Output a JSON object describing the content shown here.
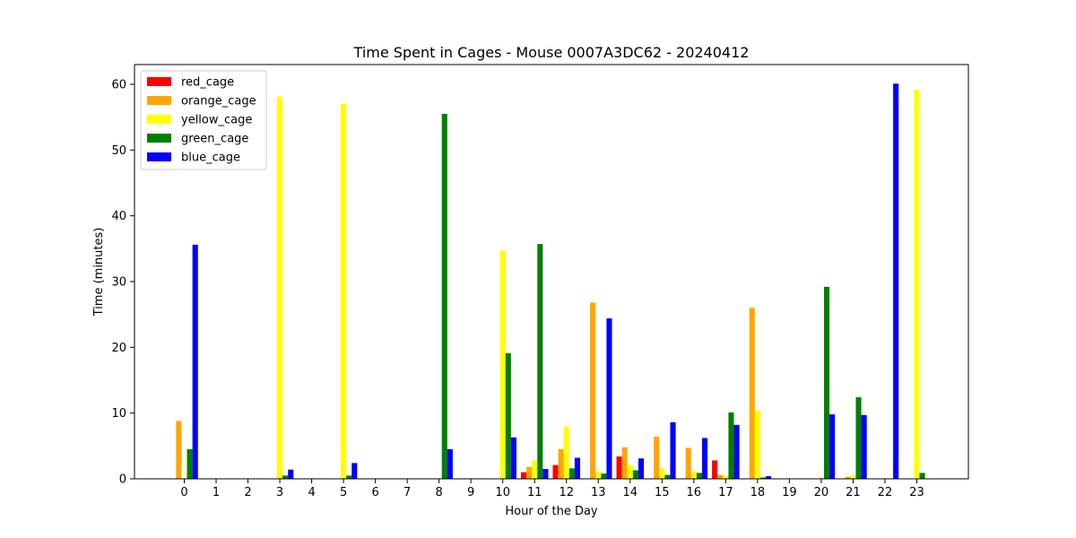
{
  "chart_data": {
    "type": "bar",
    "title": "Time Spent in Cages - Mouse 0007A3DC62 - 20240412",
    "xlabel": "Hour of the Day",
    "ylabel": "Time (minutes)",
    "categories": [
      "0",
      "1",
      "2",
      "3",
      "4",
      "5",
      "6",
      "7",
      "8",
      "9",
      "10",
      "11",
      "12",
      "13",
      "14",
      "15",
      "16",
      "17",
      "18",
      "19",
      "20",
      "21",
      "22",
      "23"
    ],
    "ylim": [
      0,
      63
    ],
    "yticks": [
      0,
      10,
      20,
      30,
      40,
      50,
      60
    ],
    "grid": false,
    "legend_position": "top-left",
    "series": [
      {
        "name": "red_cage",
        "color": "#ff0000",
        "values": [
          0,
          0,
          0,
          0,
          0,
          0,
          0,
          0,
          0,
          0,
          0,
          1.0,
          2.1,
          0,
          3.4,
          0,
          0,
          2.8,
          0,
          0,
          0,
          0,
          0,
          0
        ]
      },
      {
        "name": "orange_cage",
        "color": "#ffa500",
        "values": [
          8.8,
          0,
          0,
          0,
          0,
          0,
          0,
          0,
          0,
          0,
          0,
          1.8,
          4.5,
          26.8,
          4.8,
          6.4,
          4.7,
          0.6,
          26.0,
          0,
          0,
          0.3,
          0,
          0
        ]
      },
      {
        "name": "yellow_cage",
        "color": "#ffff00",
        "values": [
          0,
          0,
          0,
          58.1,
          0,
          57.0,
          0,
          0,
          0,
          0,
          34.7,
          2.8,
          7.9,
          1.1,
          2.1,
          1.6,
          1.1,
          0.5,
          10.4,
          0,
          0.2,
          0.5,
          0,
          59.2
        ]
      },
      {
        "name": "green_cage",
        "color": "#008000",
        "values": [
          4.5,
          0,
          0,
          0.5,
          0,
          0.5,
          0,
          0,
          55.5,
          0,
          19.1,
          35.7,
          1.6,
          0.8,
          1.3,
          0.6,
          0.9,
          10.1,
          0.2,
          0,
          29.2,
          12.4,
          0,
          0.9
        ]
      },
      {
        "name": "blue_cage",
        "color": "#0000ff",
        "values": [
          35.6,
          0,
          0,
          1.4,
          0,
          2.4,
          0,
          0,
          4.5,
          0,
          6.3,
          1.5,
          3.2,
          24.4,
          3.1,
          8.6,
          6.2,
          8.2,
          0.4,
          0,
          9.8,
          9.7,
          60.1,
          0
        ]
      }
    ]
  }
}
